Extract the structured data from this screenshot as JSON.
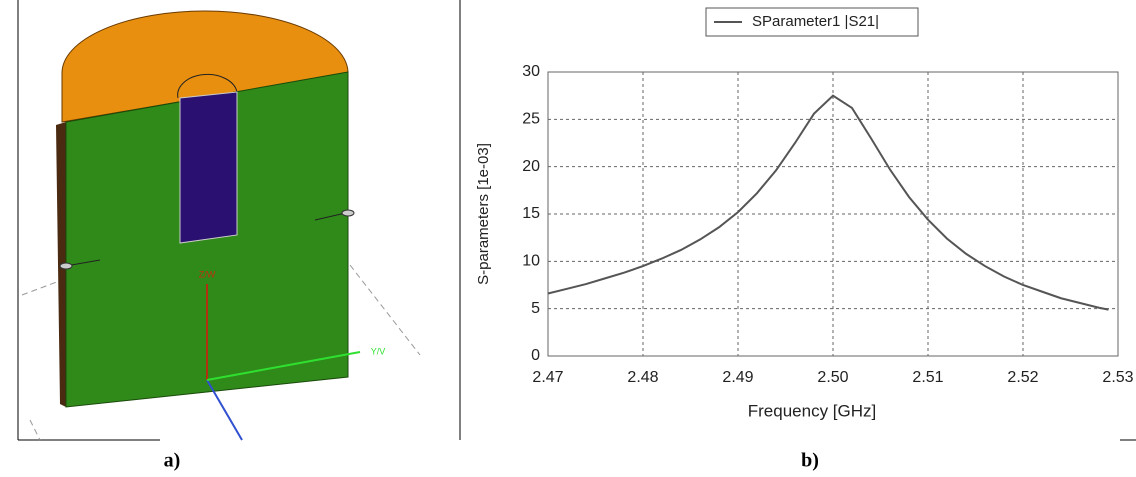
{
  "panel_labels": [
    "a)",
    "b)"
  ],
  "model_labels": [
    "Z/W",
    "Y/V"
  ],
  "chart_data": {
    "type": "line",
    "xlabel": "Frequency [GHz]",
    "ylabel": "S-parameters [1e-03]",
    "x": [
      2.47,
      2.472,
      2.474,
      2.476,
      2.478,
      2.48,
      2.482,
      2.484,
      2.486,
      2.488,
      2.49,
      2.492,
      2.494,
      2.496,
      2.498,
      2.5,
      2.502,
      2.504,
      2.506,
      2.508,
      2.51,
      2.512,
      2.514,
      2.516,
      2.518,
      2.52,
      2.522,
      2.524,
      2.526,
      2.528,
      2.529
    ],
    "series": [
      {
        "name": "SParameter1 |S21|",
        "color": "#555555",
        "values": [
          6.6,
          7.1,
          7.6,
          8.2,
          8.8,
          9.5,
          10.3,
          11.2,
          12.3,
          13.6,
          15.2,
          17.2,
          19.6,
          22.5,
          25.6,
          27.5,
          26.2,
          23.0,
          19.7,
          16.8,
          14.4,
          12.4,
          10.8,
          9.5,
          8.4,
          7.5,
          6.8,
          6.1,
          5.6,
          5.1,
          4.9
        ]
      }
    ],
    "xlim": [
      2.47,
      2.53
    ],
    "xticks": [
      2.47,
      2.48,
      2.49,
      {
        "value": 2.5,
        "label": "2.50"
      },
      2.51,
      2.52,
      2.53
    ],
    "ylim": [
      0,
      30
    ],
    "yticks": [
      0,
      5,
      10,
      15,
      20,
      25,
      30
    ],
    "grid": true,
    "legend": "top"
  }
}
